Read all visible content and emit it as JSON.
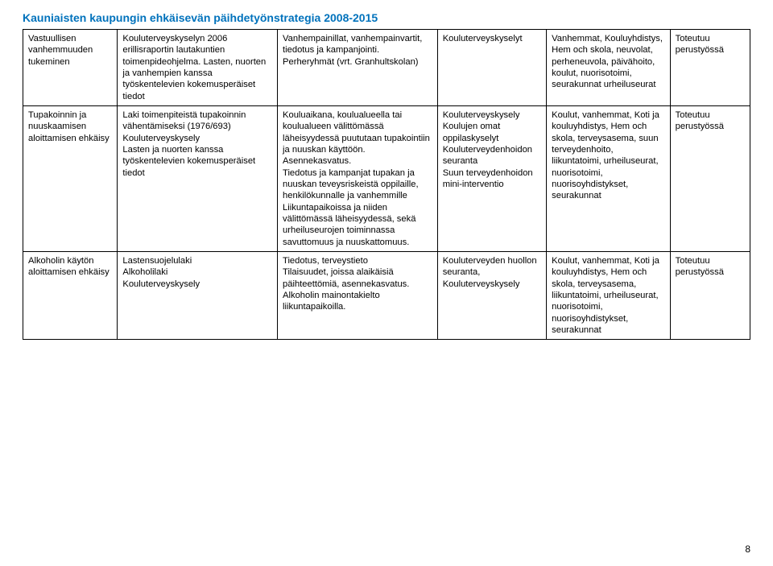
{
  "title_text": "Kauniaisten kaupungin ehkäisevän päihdetyönstrategia 2008-2015",
  "title_color": "#0072bc",
  "page_number": "8",
  "table": {
    "col_widths_pct": [
      13,
      22,
      22,
      15,
      17,
      11
    ],
    "border_color": "#000000",
    "rows": [
      [
        "Vastuullisen vanhemmuuden tukeminen",
        "Kouluterveyskyselyn 2006 erillisraportin lautakuntien toimenpideohjelma. Lasten, nuorten ja vanhempien kanssa työskentelevien kokemusperäiset tiedot",
        "Vanhempainillat, vanhempainvartit, tiedotus ja kampanjointi. Perheryhmät (vrt. Granhultskolan)",
        "Kouluterveyskyselyt",
        "Vanhemmat, Kouluyhdistys, Hem och skola, neuvolat, perheneuvola, päivähoito, koulut, nuorisotoimi, seurakunnat urheiluseurat",
        "Toteutuu perustyössä"
      ],
      [
        "Tupakoinnin ja nuuskaamisen aloittamisen ehkäisy",
        "Laki toimenpiteistä tupakoinnin vähentämiseksi (1976/693)\nKouluterveyskysely\nLasten ja nuorten kanssa työskentelevien kokemusperäiset tiedot",
        "Kouluaikana, koulualueella tai koulualueen välittömässä läheisyydessä puututaan tupakointiin ja nuuskan käyttöön. Asennekasvatus.\nTiedotus ja kampanjat tupakan ja nuuskan teveysriskeistä oppilaille, henkilökunnalle ja vanhemmille\nLiikuntapaikoissa ja niiden välittömässä läheisyydessä, sekä urheiluseurojen toiminnassa savuttomuus ja nuuskattomuus.",
        "Kouluterveyskysely\nKoulujen omat oppilaskyselyt\nKouluterveydenhoidon seuranta\nSuun terveydenhoidon mini-interventio",
        "Koulut, vanhemmat, Koti ja kouluyhdistys, Hem och skola, terveysasema, suun terveydenhoito, liikuntatoimi, urheiluseurat, nuorisotoimi, nuorisoyhdistykset, seurakunnat",
        "Toteutuu perustyössä"
      ],
      [
        "Alkoholin käytön aloittamisen ehkäisy",
        "Lastensuojelulaki\nAlkoholilaki\nKouluterveyskysely",
        "Tiedotus, terveystieto\nTilaisuudet, joissa alaikäisiä päihteettömiä, asennekasvatus. Alkoholin mainontakielto liikuntapaikoilla.",
        "Kouluterveyden huollon seuranta,\nKouluterveyskysely",
        "Koulut, vanhemmat, Koti ja kouluyhdistys, Hem och skola, terveysasema, liikuntatoimi, urheiluseurat, nuorisotoimi, nuorisoyhdistykset, seurakunnat",
        "Toteutuu perustyössä"
      ]
    ]
  }
}
